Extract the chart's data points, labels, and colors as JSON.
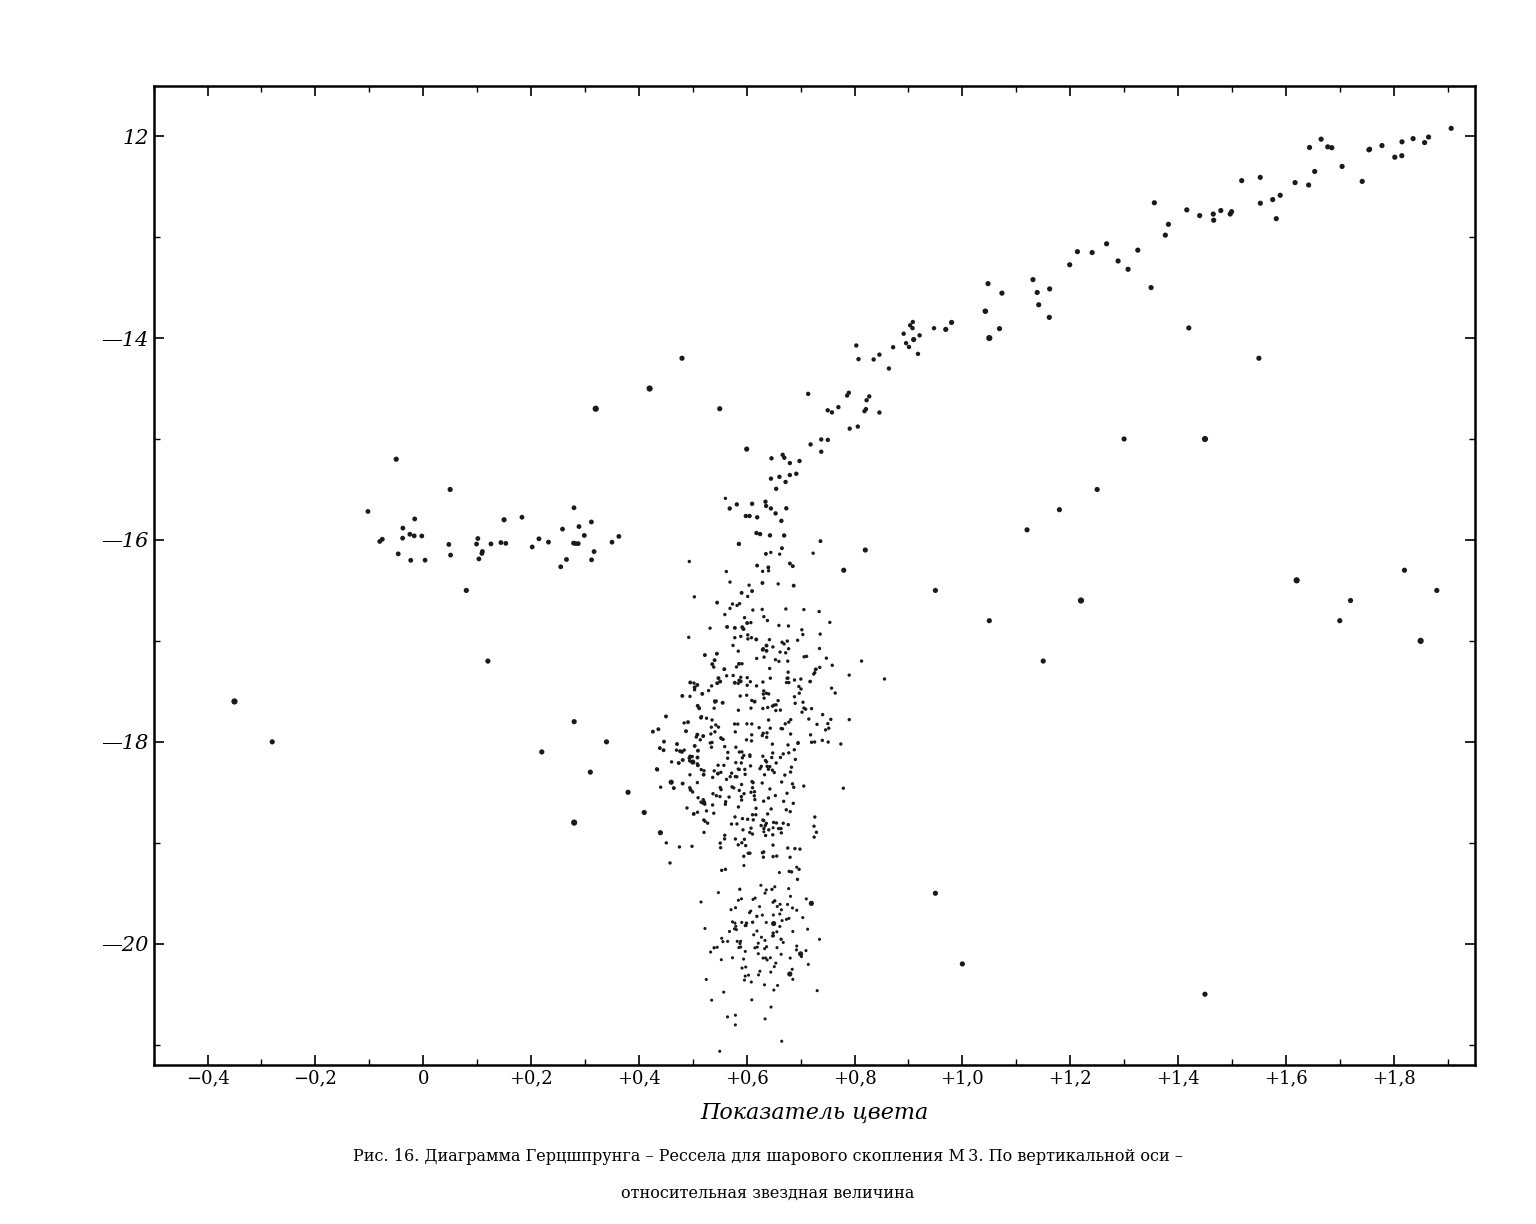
{
  "title_caption": "Рис. 16. Диаграмма Герцшпрунга – Рессела для шарового скопления М 3. По вертикальной оси –",
  "title_caption2": "относительная звездная величина",
  "xlabel": "Показатель цвета",
  "xlim": [
    -0.5,
    1.95
  ],
  "ylim": [
    21.2,
    11.5
  ],
  "xticks": [
    -0.4,
    -0.2,
    0.0,
    0.2,
    0.4,
    0.6,
    0.8,
    1.0,
    1.2,
    1.4,
    1.6,
    1.8
  ],
  "xticklabels": [
    "−0,4",
    "−0,2",
    "0",
    "+0,2",
    "+0,4",
    "+0,6",
    "+0,8",
    "+1,0",
    "+1,2",
    "+1,4",
    "+1,6",
    "+1,8"
  ],
  "yticks": [
    12,
    14,
    16,
    18,
    20
  ],
  "background_color": "#ffffff",
  "dot_color": "#1a1a1a",
  "dot_size_large": 18,
  "dot_size_medium": 10,
  "dot_size_small": 5,
  "seed": 42
}
